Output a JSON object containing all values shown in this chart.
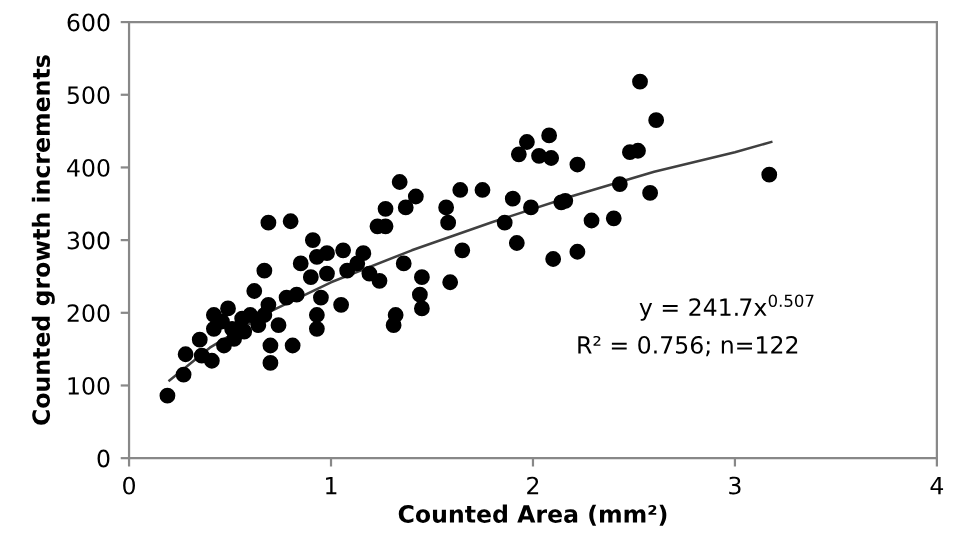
{
  "chart_data": {
    "type": "scatter",
    "xlabel": "Counted Area (mm²)",
    "ylabel": "Counted growth increments",
    "xlim": [
      0,
      4
    ],
    "xticks": [
      0,
      1,
      2,
      3,
      4
    ],
    "ylim": [
      0,
      600
    ],
    "yticks": [
      0,
      100,
      200,
      300,
      400,
      500,
      600
    ],
    "grid": false,
    "legend": false,
    "marker": "circle",
    "annotations": [
      "y = 241.7x$^{0.507}$",
      "R² = 0.756; n=122"
    ],
    "series": [
      {
        "color": "#000000",
        "x": [
          0.19,
          0.27,
          0.28,
          0.36,
          0.41,
          0.35,
          0.42,
          0.46,
          0.49,
          0.42,
          0.51,
          0.47,
          0.52,
          0.57,
          0.56,
          0.6,
          0.64,
          0.67,
          0.69,
          0.7,
          0.7,
          0.74,
          0.81,
          0.62,
          0.67,
          0.69,
          0.8,
          0.78,
          0.83,
          0.85,
          0.91,
          0.93,
          0.9,
          0.95,
          0.93,
          0.93,
          0.98,
          0.98,
          1.05,
          1.06,
          1.08,
          1.13,
          1.16,
          1.19,
          1.24,
          1.27,
          1.27,
          1.23,
          1.32,
          1.31,
          1.36,
          1.34,
          1.42,
          1.37,
          1.57,
          1.64,
          1.75,
          1.58,
          1.65,
          1.59,
          1.45,
          1.44,
          1.45,
          1.86,
          1.9,
          1.92,
          1.99,
          1.93,
          1.97,
          2.03,
          2.08,
          2.09,
          2.14,
          2.1,
          2.22,
          2.22,
          2.53,
          2.61,
          2.48,
          2.52,
          2.43,
          2.58,
          2.16,
          2.29,
          2.4,
          3.17
        ],
        "values": [
          86,
          115,
          143,
          141,
          134,
          163,
          178,
          188,
          206,
          197,
          178,
          155,
          164,
          174,
          192,
          197,
          183,
          197,
          211,
          155,
          131,
          183,
          155,
          230,
          258,
          324,
          326,
          221,
          225,
          268,
          300,
          277,
          249,
          221,
          197,
          178,
          254,
          282,
          211,
          286,
          258,
          268,
          282,
          254,
          244,
          319,
          343,
          319,
          197,
          183,
          268,
          380,
          360,
          345,
          345,
          369,
          369,
          324,
          286,
          242,
          249,
          225,
          206,
          324,
          357,
          296,
          345,
          418,
          435,
          416,
          444,
          413,
          352,
          274,
          404,
          284,
          518,
          465,
          421,
          423,
          377,
          365,
          354,
          327,
          330,
          390
        ]
      },
      {
        "type": "line",
        "color": "#404040",
        "marker": "none",
        "x": [
          0.2,
          0.4,
          0.7,
          1.0,
          1.4,
          1.8,
          2.2,
          2.6,
          3.0,
          3.18
        ],
        "values": [
          107,
          152,
          202,
          242,
          286,
          325,
          361,
          394,
          421,
          435
        ]
      }
    ]
  }
}
